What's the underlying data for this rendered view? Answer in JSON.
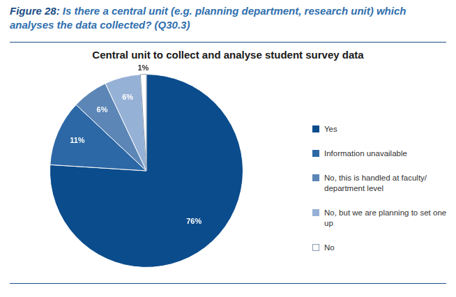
{
  "caption": {
    "label": "Figure 28:",
    "text": "Is there a central unit (e.g. planning department, research unit) which analyses the data collected? (Q30.3)"
  },
  "chart_data": {
    "type": "pie",
    "title": "Central unit to collect and analyse student survey data",
    "categories": [
      "Yes",
      "Information unavailable",
      "No, this is handled at faculty/ department level",
      "No, but we are planning to set one up",
      "No"
    ],
    "values": [
      76,
      11,
      6,
      6,
      1
    ],
    "value_labels": [
      "76%",
      "11%",
      "6%",
      "6%",
      "1%"
    ],
    "colors": [
      "#0b4c8c",
      "#2d68a6",
      "#5c86b6",
      "#96b1d6",
      "#ffffff"
    ],
    "data_labels": true,
    "legend": "right"
  }
}
